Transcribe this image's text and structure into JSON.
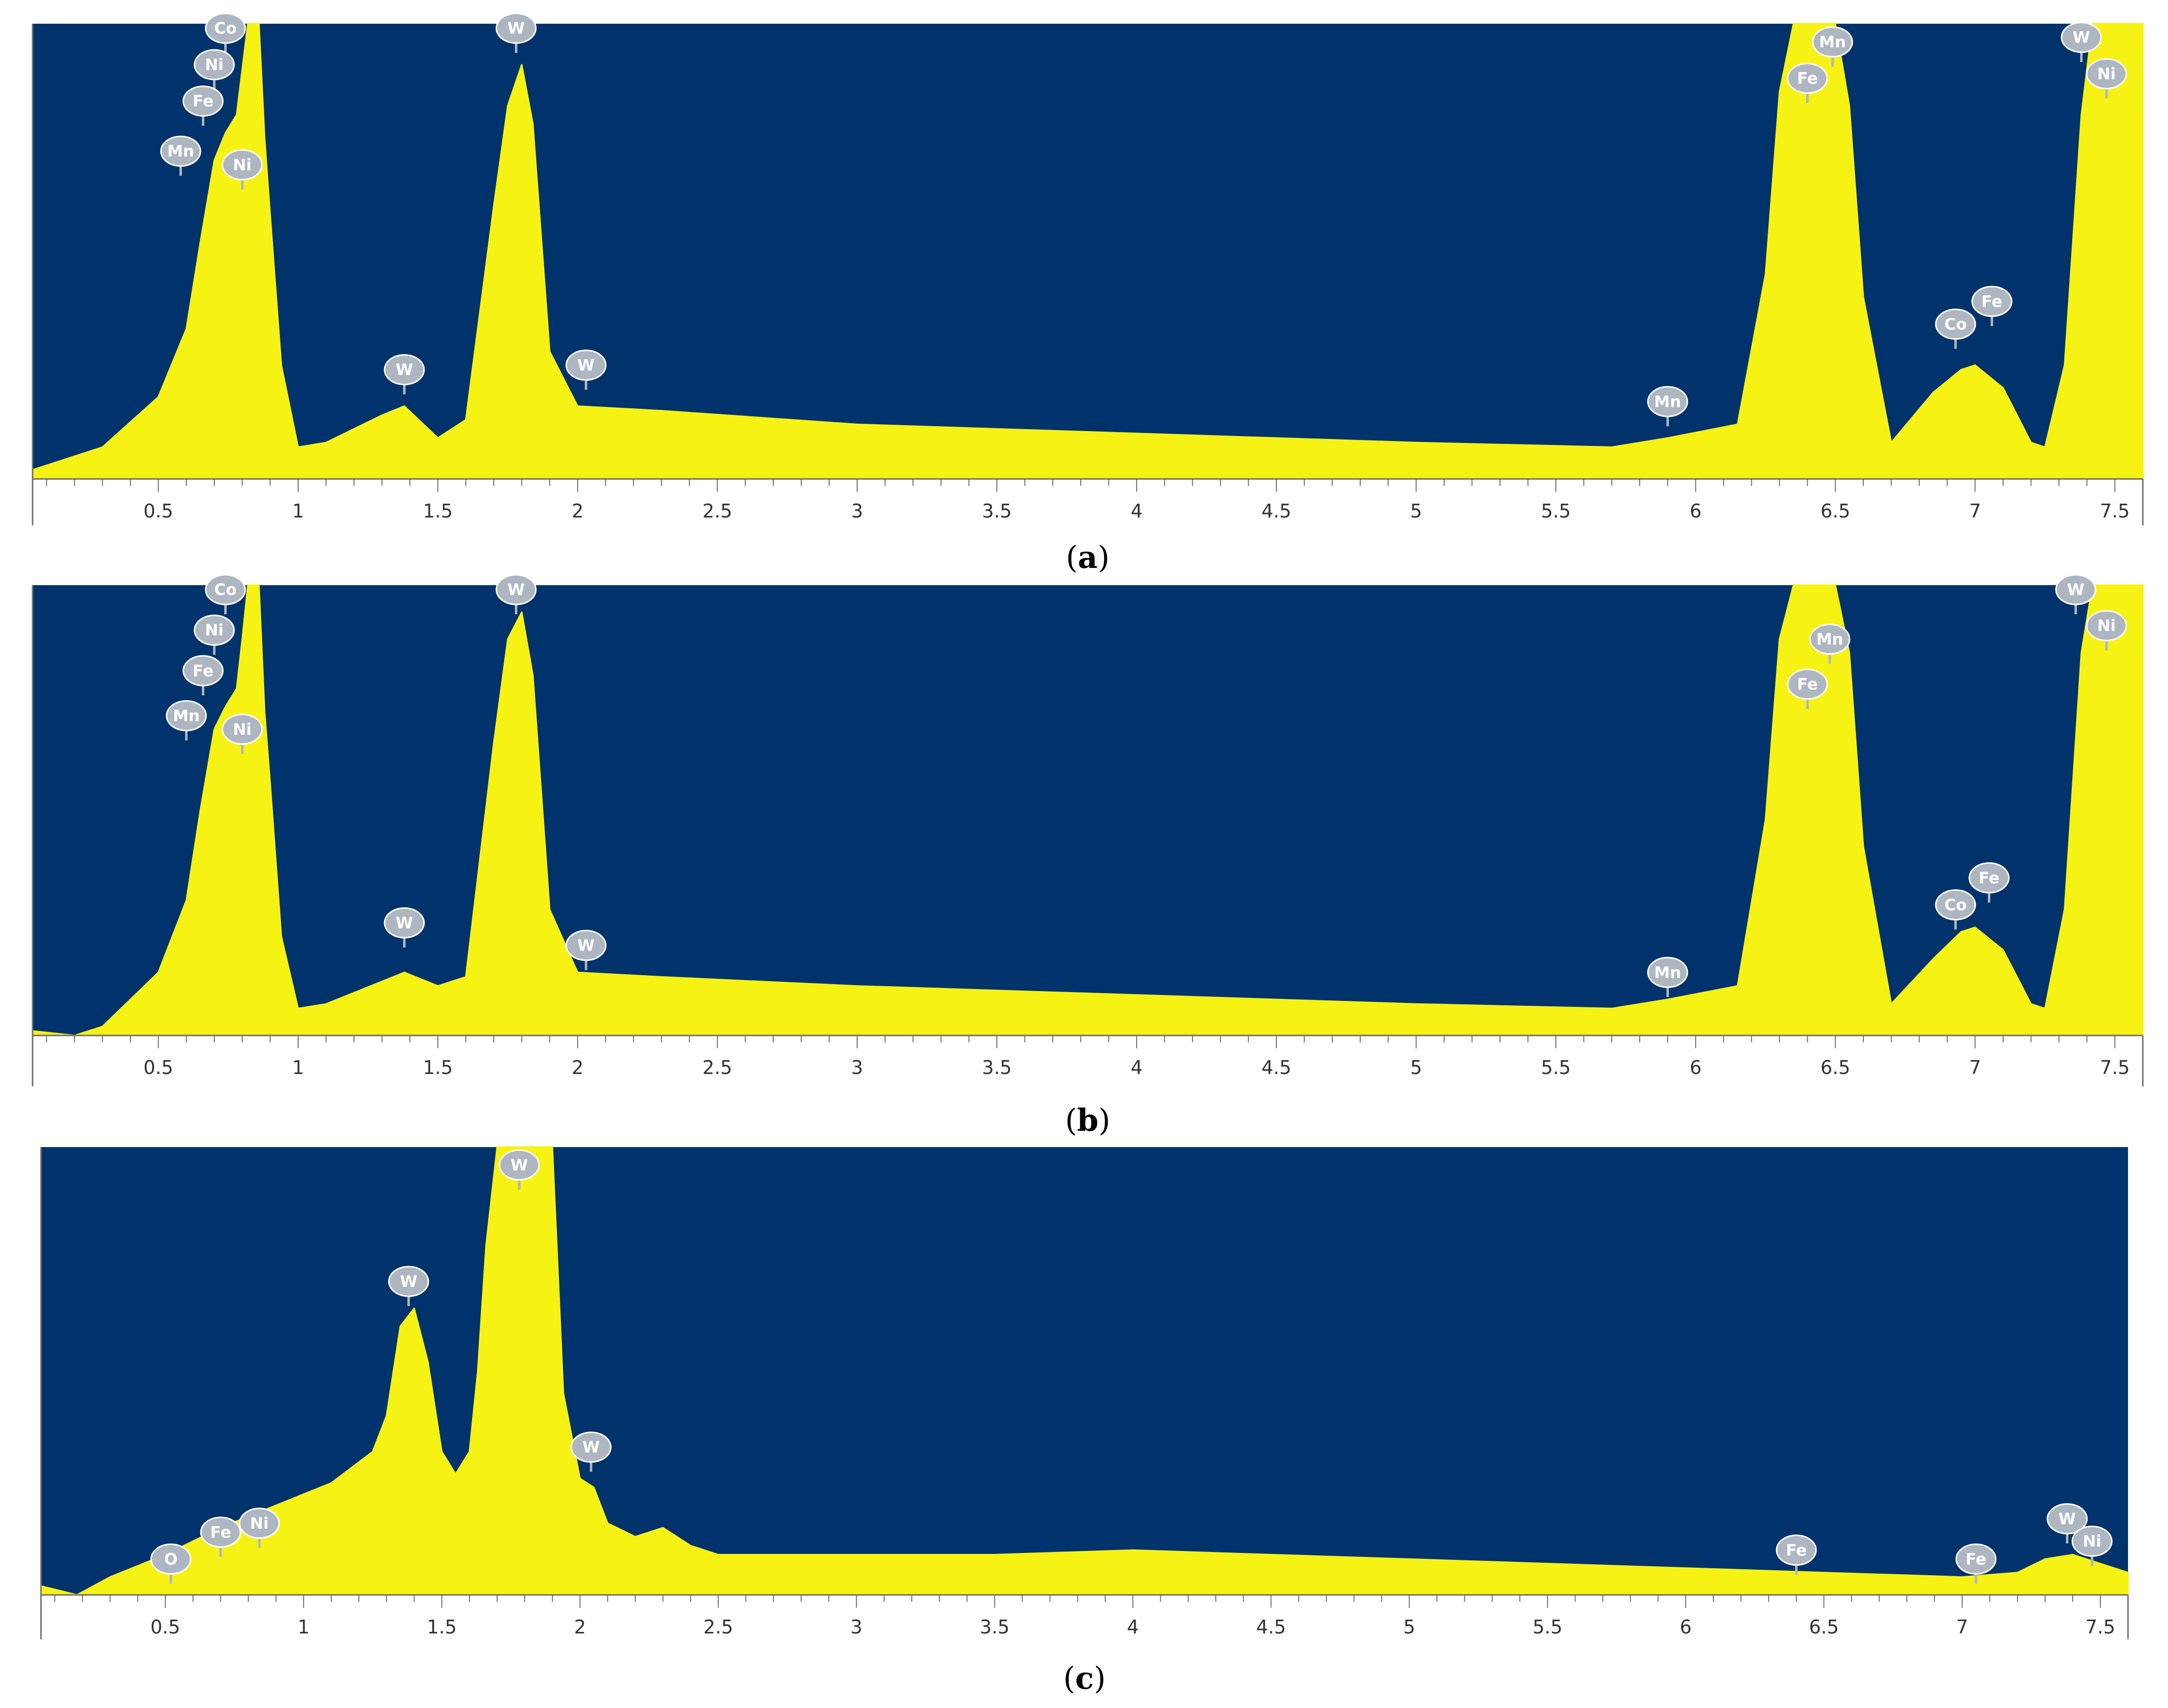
{
  "colors": {
    "plot_background": "#00336b",
    "spectrum_fill": "#f6f214",
    "marker_fill": "#aeb6c2",
    "axis_line": "#6f6f6f",
    "tick_text": "#333333"
  },
  "chart_data": [
    {
      "type": "area",
      "caption": "a",
      "xlim": [
        0.05,
        7.6
      ],
      "ylim": [
        0,
        100
      ],
      "xticks": [
        "0.5",
        "1",
        "1.5",
        "2",
        "2.5",
        "3",
        "3.5",
        "4",
        "4.5",
        "5",
        "5.5",
        "6",
        "6.5",
        "7",
        "7.5"
      ],
      "spectrum": {
        "x": [
          0.05,
          0.3,
          0.5,
          0.6,
          0.65,
          0.7,
          0.74,
          0.78,
          0.8,
          0.82,
          0.84,
          0.86,
          0.88,
          0.9,
          0.94,
          1.0,
          1.1,
          1.3,
          1.38,
          1.5,
          1.6,
          1.7,
          1.75,
          1.8,
          1.84,
          1.9,
          2.0,
          2.3,
          3.0,
          4.0,
          5.0,
          5.7,
          5.9,
          6.15,
          6.25,
          6.3,
          6.35,
          6.4,
          6.45,
          6.5,
          6.55,
          6.6,
          6.7,
          6.85,
          6.95,
          7.0,
          7.1,
          7.2,
          7.25,
          7.32,
          7.38,
          7.42,
          7.48,
          7.55,
          7.6
        ],
        "y": [
          2,
          7,
          18,
          33,
          52,
          70,
          76,
          80,
          90,
          100,
          100,
          100,
          75,
          58,
          25,
          7,
          8,
          14,
          16,
          9,
          13,
          60,
          82,
          91,
          78,
          28,
          16,
          15,
          12,
          10,
          8,
          7,
          9,
          12,
          45,
          85,
          100,
          100,
          100,
          100,
          82,
          40,
          8,
          19,
          24,
          25,
          20,
          8,
          7,
          25,
          80,
          100,
          100,
          100,
          100
        ]
      },
      "peaks": [
        {
          "x": 0.74,
          "y": 99,
          "label": "Co"
        },
        {
          "x": 0.7,
          "y": 91,
          "label": "Ni"
        },
        {
          "x": 0.66,
          "y": 83,
          "label": "Fe"
        },
        {
          "x": 0.58,
          "y": 72,
          "label": "Mn"
        },
        {
          "x": 0.8,
          "y": 69,
          "label": "Ni"
        },
        {
          "x": 1.38,
          "y": 24,
          "label": "W"
        },
        {
          "x": 1.78,
          "y": 99,
          "label": "W"
        },
        {
          "x": 2.03,
          "y": 25,
          "label": "W"
        },
        {
          "x": 5.9,
          "y": 17,
          "label": "Mn"
        },
        {
          "x": 6.4,
          "y": 88,
          "label": "Fe"
        },
        {
          "x": 6.49,
          "y": 96,
          "label": "Mn"
        },
        {
          "x": 6.93,
          "y": 34,
          "label": "Co"
        },
        {
          "x": 7.06,
          "y": 39,
          "label": "Fe"
        },
        {
          "x": 7.38,
          "y": 97,
          "label": "W"
        },
        {
          "x": 7.47,
          "y": 89,
          "label": "Ni"
        }
      ]
    },
    {
      "type": "area",
      "caption": "b",
      "xlim": [
        0.05,
        7.6
      ],
      "ylim": [
        0,
        100
      ],
      "xticks": [
        "0.5",
        "1",
        "1.5",
        "2",
        "2.5",
        "3",
        "3.5",
        "4",
        "4.5",
        "5",
        "5.5",
        "6",
        "6.5",
        "7",
        "7.5"
      ],
      "spectrum": {
        "x": [
          0.05,
          0.2,
          0.3,
          0.5,
          0.6,
          0.65,
          0.7,
          0.74,
          0.78,
          0.8,
          0.82,
          0.84,
          0.86,
          0.88,
          0.9,
          0.94,
          1.0,
          1.1,
          1.3,
          1.38,
          1.5,
          1.6,
          1.7,
          1.75,
          1.8,
          1.84,
          1.9,
          2.0,
          2.3,
          3.0,
          4.0,
          5.0,
          5.7,
          5.9,
          6.15,
          6.25,
          6.3,
          6.35,
          6.4,
          6.45,
          6.5,
          6.55,
          6.6,
          6.7,
          6.85,
          6.95,
          7.0,
          7.1,
          7.2,
          7.25,
          7.32,
          7.38,
          7.42,
          7.48,
          7.55,
          7.6
        ],
        "y": [
          1,
          0,
          2,
          14,
          30,
          50,
          68,
          73,
          77,
          88,
          100,
          100,
          100,
          72,
          56,
          22,
          6,
          7,
          12,
          14,
          11,
          13,
          65,
          88,
          94,
          80,
          28,
          14,
          13,
          11,
          9,
          7,
          6,
          8,
          11,
          48,
          88,
          100,
          100,
          100,
          100,
          85,
          42,
          7,
          17,
          23,
          24,
          19,
          7,
          6,
          28,
          85,
          100,
          100,
          100,
          100
        ]
      },
      "peaks": [
        {
          "x": 0.74,
          "y": 99,
          "label": "Co"
        },
        {
          "x": 0.7,
          "y": 90,
          "label": "Ni"
        },
        {
          "x": 0.66,
          "y": 81,
          "label": "Fe"
        },
        {
          "x": 0.6,
          "y": 71,
          "label": "Mn"
        },
        {
          "x": 0.8,
          "y": 68,
          "label": "Ni"
        },
        {
          "x": 1.38,
          "y": 25,
          "label": "W"
        },
        {
          "x": 1.78,
          "y": 99,
          "label": "W"
        },
        {
          "x": 2.03,
          "y": 20,
          "label": "W"
        },
        {
          "x": 5.9,
          "y": 14,
          "label": "Mn"
        },
        {
          "x": 6.4,
          "y": 78,
          "label": "Fe"
        },
        {
          "x": 6.48,
          "y": 88,
          "label": "Mn"
        },
        {
          "x": 6.93,
          "y": 29,
          "label": "Co"
        },
        {
          "x": 7.05,
          "y": 35,
          "label": "Fe"
        },
        {
          "x": 7.36,
          "y": 99,
          "label": "W"
        },
        {
          "x": 7.47,
          "y": 91,
          "label": "Ni"
        }
      ]
    },
    {
      "type": "area",
      "caption": "c",
      "xlim": [
        0.05,
        7.6
      ],
      "ylim": [
        0,
        100
      ],
      "xticks": [
        "0.5",
        "1",
        "1.5",
        "2",
        "2.5",
        "3",
        "3.5",
        "4",
        "4.5",
        "5",
        "5.5",
        "6",
        "6.5",
        "7",
        "7.5"
      ],
      "spectrum": {
        "x": [
          0.05,
          0.18,
          0.3,
          0.5,
          0.7,
          0.9,
          1.1,
          1.25,
          1.3,
          1.35,
          1.4,
          1.45,
          1.5,
          1.55,
          1.6,
          1.63,
          1.66,
          1.7,
          1.8,
          1.9,
          1.94,
          2.0,
          2.05,
          2.1,
          2.2,
          2.3,
          2.4,
          2.5,
          3.0,
          3.5,
          4.0,
          4.5,
          5.0,
          5.5,
          6.0,
          6.5,
          7.0,
          7.2,
          7.3,
          7.4,
          7.5,
          7.6
        ],
        "y": [
          2,
          0,
          4,
          9,
          15,
          20,
          25,
          32,
          40,
          60,
          64,
          52,
          32,
          27,
          32,
          50,
          78,
          100,
          100,
          100,
          45,
          26,
          24,
          16,
          13,
          15,
          11,
          9,
          9,
          9,
          10,
          9,
          8,
          7,
          6,
          5,
          4,
          5,
          8,
          9,
          7,
          5
        ]
      },
      "peaks": [
        {
          "x": 0.52,
          "y": 8,
          "label": "O"
        },
        {
          "x": 0.7,
          "y": 14,
          "label": "Fe"
        },
        {
          "x": 0.84,
          "y": 16,
          "label": "Ni"
        },
        {
          "x": 1.38,
          "y": 70,
          "label": "W"
        },
        {
          "x": 1.78,
          "y": 96,
          "label": "W"
        },
        {
          "x": 2.04,
          "y": 33,
          "label": "W"
        },
        {
          "x": 6.4,
          "y": 10,
          "label": "Fe"
        },
        {
          "x": 7.05,
          "y": 8,
          "label": "Fe"
        },
        {
          "x": 7.38,
          "y": 17,
          "label": "W"
        },
        {
          "x": 7.47,
          "y": 12,
          "label": "Ni"
        }
      ]
    }
  ]
}
